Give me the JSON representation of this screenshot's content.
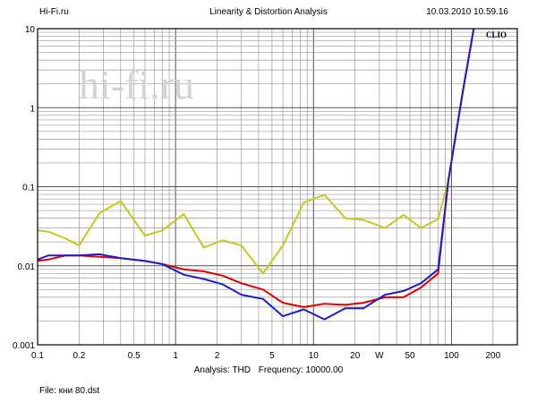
{
  "header": {
    "left": "Hi-Fi.ru",
    "title": "Linearity & Distortion Analysis",
    "datetime": "10.03.2010 10.59.16"
  },
  "watermark": "hi-fi.ru",
  "badge": "CLIO",
  "footer": {
    "analysis": "Analysis: THD",
    "frequency": "Frequency: 10000.00",
    "file": "File: кни 80.dst"
  },
  "chart_data": {
    "type": "line",
    "x_scale": "log",
    "y_scale": "log",
    "xlim": [
      0.1,
      300
    ],
    "ylim": [
      0.001,
      10
    ],
    "grid": true,
    "x_ticks": [
      {
        "value": 0.1,
        "label": "0.1"
      },
      {
        "value": 0.2,
        "label": "0.2"
      },
      {
        "value": 0.5,
        "label": "0.5"
      },
      {
        "value": 1,
        "label": "1"
      },
      {
        "value": 2,
        "label": "2"
      },
      {
        "value": 5,
        "label": "5"
      },
      {
        "value": 10,
        "label": "10"
      },
      {
        "value": 20,
        "label": "20"
      },
      {
        "value": 30,
        "label": "W"
      },
      {
        "value": 50,
        "label": "50"
      },
      {
        "value": 100,
        "label": "100"
      },
      {
        "value": 200,
        "label": "200"
      }
    ],
    "y_ticks": [
      {
        "value": 10,
        "label": "10"
      },
      {
        "value": 1,
        "label": "1"
      },
      {
        "value": 0.1,
        "label": "0.1"
      },
      {
        "value": 0.01,
        "label": "0.01"
      },
      {
        "value": 0.001,
        "label": "0.001"
      }
    ],
    "series": [
      {
        "color": "#c8c81e",
        "points": [
          [
            0.1,
            0.028
          ],
          [
            0.12,
            0.027
          ],
          [
            0.16,
            0.022
          ],
          [
            0.2,
            0.018
          ],
          [
            0.28,
            0.046
          ],
          [
            0.4,
            0.066
          ],
          [
            0.6,
            0.024
          ],
          [
            0.8,
            0.028
          ],
          [
            1.15,
            0.045
          ],
          [
            1.6,
            0.017
          ],
          [
            2.2,
            0.021
          ],
          [
            3.0,
            0.018
          ],
          [
            4.3,
            0.008
          ],
          [
            6.0,
            0.018
          ],
          [
            8.5,
            0.063
          ],
          [
            12,
            0.079
          ],
          [
            17,
            0.04
          ],
          [
            23,
            0.038
          ],
          [
            33,
            0.03
          ],
          [
            45,
            0.044
          ],
          [
            60,
            0.03
          ],
          [
            80,
            0.039
          ],
          [
            95,
            0.12
          ],
          [
            120,
            1.5
          ],
          [
            145,
            10
          ]
        ]
      },
      {
        "color": "#e00000",
        "points": [
          [
            0.1,
            0.0115
          ],
          [
            0.12,
            0.012
          ],
          [
            0.16,
            0.0135
          ],
          [
            0.2,
            0.0135
          ],
          [
            0.28,
            0.013
          ],
          [
            0.4,
            0.0125
          ],
          [
            0.6,
            0.0115
          ],
          [
            0.8,
            0.0105
          ],
          [
            1.15,
            0.009
          ],
          [
            1.6,
            0.0085
          ],
          [
            2.2,
            0.0075
          ],
          [
            3.0,
            0.006
          ],
          [
            4.3,
            0.005
          ],
          [
            6.0,
            0.0034
          ],
          [
            8.5,
            0.003
          ],
          [
            12,
            0.0033
          ],
          [
            17,
            0.0032
          ],
          [
            23,
            0.0034
          ],
          [
            33,
            0.004
          ],
          [
            45,
            0.004
          ],
          [
            60,
            0.0053
          ],
          [
            80,
            0.008
          ],
          [
            95,
            0.12
          ],
          [
            120,
            1.5
          ],
          [
            145,
            10
          ]
        ]
      },
      {
        "color": "#1e1ec8",
        "points": [
          [
            0.1,
            0.012
          ],
          [
            0.12,
            0.0135
          ],
          [
            0.16,
            0.0135
          ],
          [
            0.2,
            0.0135
          ],
          [
            0.28,
            0.014
          ],
          [
            0.4,
            0.0125
          ],
          [
            0.6,
            0.0115
          ],
          [
            0.8,
            0.0105
          ],
          [
            1.15,
            0.0077
          ],
          [
            1.6,
            0.0068
          ],
          [
            2.2,
            0.0058
          ],
          [
            3.0,
            0.0043
          ],
          [
            4.3,
            0.0038
          ],
          [
            6.0,
            0.0023
          ],
          [
            8.5,
            0.0028
          ],
          [
            12,
            0.0021
          ],
          [
            17,
            0.0029
          ],
          [
            23,
            0.0029
          ],
          [
            33,
            0.0043
          ],
          [
            45,
            0.0048
          ],
          [
            60,
            0.006
          ],
          [
            80,
            0.009
          ],
          [
            95,
            0.12
          ],
          [
            120,
            1.5
          ],
          [
            145,
            10
          ]
        ]
      }
    ]
  }
}
